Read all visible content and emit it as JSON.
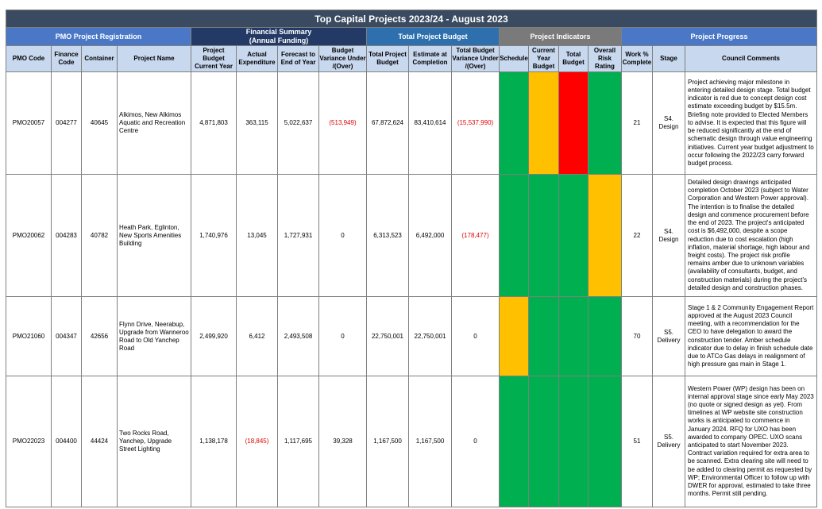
{
  "title": "Top Capital Projects 2023/24 - August 2023",
  "groups": {
    "pmo": "PMO Project Registration",
    "financial_line1": "Financial Summary",
    "financial_line2": "(Annual Funding)",
    "total_budget": "Total Project Budget",
    "indicators": "Project Indicators",
    "progress": "Project Progress"
  },
  "columns": {
    "pmo_code": "PMO Code",
    "finance_code": "Finance Code",
    "container": "Container",
    "project_name": "Project Name",
    "project_budget": "Project Budget Current Year",
    "actual_expenditure": "Actual Expenditure",
    "forecast": "Forecast to End of Year",
    "budget_variance": "Budget Variance Under /(Over)",
    "total_project_budget": "Total Project Budget",
    "estimate_completion": "Estimate at Completion",
    "total_budget_variance": "Total Budget Variance Under /(Over)",
    "schedule": "Schedule",
    "current_year_budget": "Current Year Budget",
    "total_budget_ind": "Total Budget",
    "overall_risk": "Overall Risk Rating",
    "work_complete": "Work % Complete",
    "stage": "Stage",
    "council_comments": "Council Comments"
  },
  "colors": {
    "green": "#00b050",
    "amber": "#ffc000",
    "red": "#ff0000",
    "negative_text": "#e00000"
  },
  "rows": [
    {
      "pmo_code": "PMO20057",
      "finance_code": "004277",
      "container": "40645",
      "project_name": "Alkimos, New Alkimos Aquatic and Recreation Centre",
      "project_budget": "4,871,803",
      "actual_expenditure": "363,115",
      "forecast": "5,022,637",
      "budget_variance": "(513,949)",
      "total_project_budget": "67,872,624",
      "estimate_completion": "83,410,614",
      "total_budget_variance": "(15,537,990)",
      "indicators": [
        "green",
        "amber",
        "red",
        "green"
      ],
      "work_complete": "21",
      "stage_line1": "S4.",
      "stage_line2": "Design",
      "comment": "Project achieving major milestone in entering detailed design stage. Total budget indicator is red due to concept design cost estimate exceeding budget by $15.5m. Briefing note provided to Elected Members to advise. It is expected that this figure will be reduced significantly at the end of schematic design through value engineering initiatives. Current year budget adjustment to occur following the 2022/23 carry forward budget process."
    },
    {
      "pmo_code": "PMO20062",
      "finance_code": "004283",
      "container": "40782",
      "project_name": "Heath Park, Eglinton, New Sports Amenities Building",
      "project_budget": "1,740,976",
      "actual_expenditure": "13,045",
      "forecast": "1,727,931",
      "budget_variance": "0",
      "total_project_budget": "6,313,523",
      "estimate_completion": "6,492,000",
      "total_budget_variance": "(178,477)",
      "indicators": [
        "green",
        "green",
        "green",
        "amber"
      ],
      "work_complete": "22",
      "stage_line1": "S4.",
      "stage_line2": "Design",
      "comment": "Detailed design drawings anticipated completion October 2023 (subject to Water Corporation and Western Power approval). The intention is to finalise the detailed design and commence procurement before the end of 2023. The project's anticipated cost is $6,492,000, despite a scope reduction due to cost escalation (high inflation, material shortage, high labour and freight costs). The project risk profile remains amber due to unknown variables (availability of consultants, budget, and construction materials) during the project's detailed design and construction phases."
    },
    {
      "pmo_code": "PMO21060",
      "finance_code": "004347",
      "container": "42656",
      "project_name": "Flynn Drive, Neerabup, Upgrade from Wanneroo Road to Old Yanchep Road",
      "project_budget": "2,499,920",
      "actual_expenditure": "6,412",
      "forecast": "2,493,508",
      "budget_variance": "0",
      "total_project_budget": "22,750,001",
      "estimate_completion": "22,750,001",
      "total_budget_variance": "0",
      "indicators": [
        "amber",
        "green",
        "green",
        "green"
      ],
      "work_complete": "70",
      "stage_line1": "S5.",
      "stage_line2": "Delivery",
      "comment": "Stage 1 & 2 Community Engagement Report approved at the August 2023 Council meeting, with a recommendation for the CEO to have delegation to award the construction tender. Amber schedule indicator due to delay in finish schedule date due to ATCo Gas delays in realignment of high pressure gas main in Stage 1."
    },
    {
      "pmo_code": "PMO22023",
      "finance_code": "004400",
      "container": "44424",
      "project_name": "Two Rocks Road, Yanchep, Upgrade Street Lighting",
      "project_budget": "1,138,178",
      "actual_expenditure": "(18,845)",
      "forecast": "1,117,695",
      "budget_variance": "39,328",
      "total_project_budget": "1,167,500",
      "estimate_completion": "1,167,500",
      "total_budget_variance": "0",
      "indicators": [
        "green",
        "green",
        "green",
        "green"
      ],
      "work_complete": "51",
      "stage_line1": "S5.",
      "stage_line2": "Delivery",
      "comment": "Western Power (WP) design has been on internal approval stage since early May 2023 (no quote or signed design as yet). From timelines at WP website site construction works is anticipated to commence in January 2024. RFQ for UXO has been awarded to company OPEC. UXO scans anticipated to start November 2023. Contract variation required for extra area to be scanned. Extra clearing site will need to be added to clearing permit as requested by WP; Environmental Officer to follow up with DWER for approval, estimated to take three months. Permit still pending."
    }
  ]
}
